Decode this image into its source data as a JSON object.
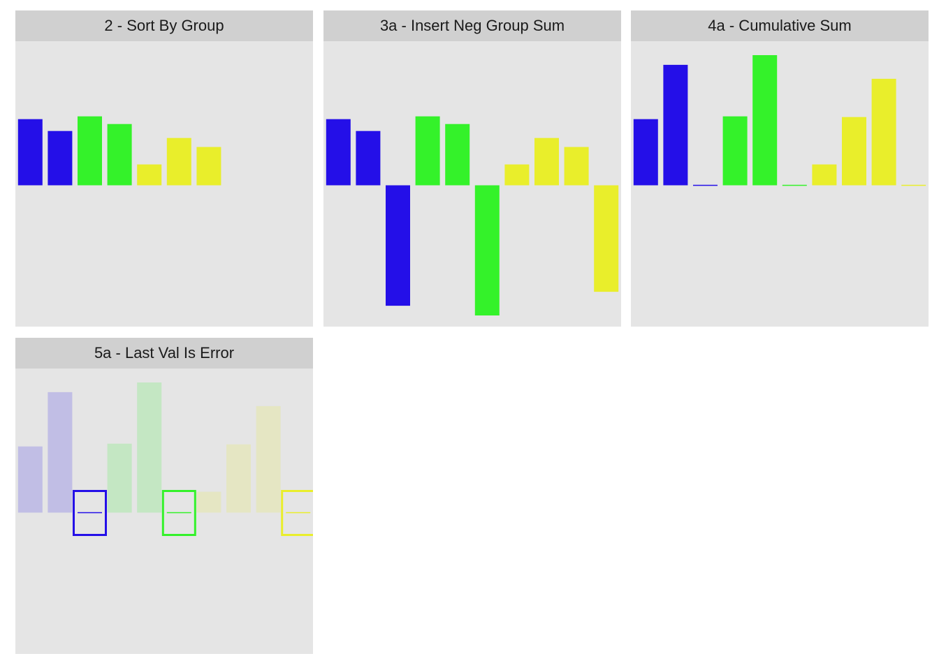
{
  "colors": {
    "blue": "#240fe8",
    "green": "#34f22a",
    "yellow": "#e9ee2b"
  },
  "chart_data": [
    {
      "type": "bar",
      "title": "2 - Sort By Group",
      "x": [
        1,
        2,
        3,
        4,
        5,
        6,
        7
      ],
      "values": [
        95,
        78,
        99,
        88,
        30,
        68,
        55
      ],
      "groups": [
        "blue",
        "blue",
        "green",
        "green",
        "yellow",
        "yellow",
        "yellow"
      ],
      "ylim": [
        -200,
        200
      ],
      "xlim": [
        0.5,
        10.5
      ]
    },
    {
      "type": "bar",
      "title": "3a - Insert Neg Group Sum",
      "x": [
        1,
        2,
        3,
        4,
        5,
        6,
        7,
        8,
        9,
        10
      ],
      "values": [
        95,
        78,
        -173,
        99,
        88,
        -187,
        30,
        68,
        55,
        -153
      ],
      "groups": [
        "blue",
        "blue",
        "blue",
        "green",
        "green",
        "green",
        "yellow",
        "yellow",
        "yellow",
        "yellow"
      ],
      "ylim": [
        -200,
        200
      ],
      "xlim": [
        0.5,
        10.5
      ]
    },
    {
      "type": "bar",
      "title": "4a - Cumulative Sum",
      "x": [
        1,
        2,
        3,
        4,
        5,
        6,
        7,
        8,
        9,
        10
      ],
      "values": [
        95,
        173,
        0,
        99,
        187,
        0,
        30,
        98,
        153,
        0
      ],
      "groups": [
        "blue",
        "blue",
        "blue",
        "green",
        "green",
        "green",
        "yellow",
        "yellow",
        "yellow",
        "yellow"
      ],
      "ylim": [
        -200,
        200
      ],
      "xlim": [
        0.5,
        10.5
      ]
    },
    {
      "type": "bar",
      "title": "5a - Last Val Is Error",
      "x": [
        1,
        2,
        3,
        4,
        5,
        6,
        7,
        8,
        9,
        10
      ],
      "values": [
        95,
        173,
        0,
        99,
        187,
        0,
        30,
        98,
        153,
        0
      ],
      "groups": [
        "blue",
        "blue",
        "blue",
        "green",
        "green",
        "green",
        "yellow",
        "yellow",
        "yellow",
        "yellow"
      ],
      "faded": [
        true,
        true,
        false,
        true,
        true,
        false,
        true,
        true,
        true,
        false
      ],
      "highlighted": [
        3,
        6,
        10
      ],
      "ylim": [
        -200,
        200
      ],
      "xlim": [
        0.5,
        10.5
      ]
    }
  ]
}
